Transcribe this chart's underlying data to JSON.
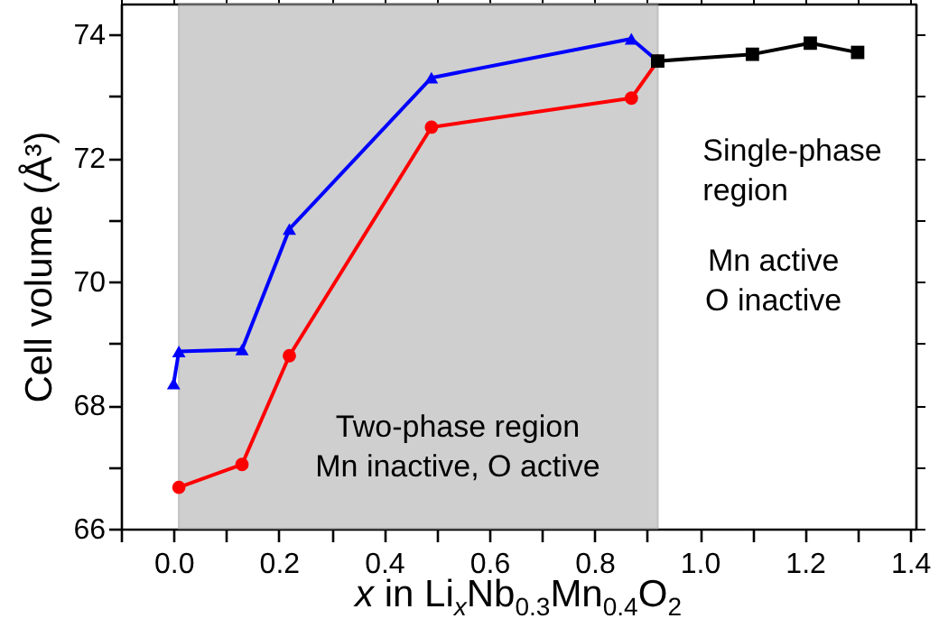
{
  "chart_data": {
    "type": "line",
    "xlabel": "x in Li$_{x}$Nb$_{0.3}$Mn$_{0.4}$O$_{2}$",
    "ylabel": "Cell volume (Å³)",
    "xlim": [
      -0.1,
      1.41
    ],
    "ylim": [
      66,
      74.5
    ],
    "xticks": [
      {
        "value": -0.1,
        "label": null
      },
      {
        "value": 0,
        "label": "0.0"
      },
      {
        "value": 0.1,
        "label": null
      },
      {
        "value": 0.2,
        "label": "0.2"
      },
      {
        "value": 0.3,
        "label": null
      },
      {
        "value": 0.4,
        "label": "0.4"
      },
      {
        "value": 0.5,
        "label": null
      },
      {
        "value": 0.6,
        "label": "0.6"
      },
      {
        "value": 0.7,
        "label": null
      },
      {
        "value": 0.8,
        "label": "0.8"
      },
      {
        "value": 0.9,
        "label": null
      },
      {
        "value": 1.0,
        "label": "1.0"
      },
      {
        "value": 1.1,
        "label": null
      },
      {
        "value": 1.2,
        "label": "1.2"
      },
      {
        "value": 1.3,
        "label": null
      },
      {
        "value": 1.4,
        "label": "1.4"
      }
    ],
    "yticks": [
      66,
      {
        "value": 67,
        "label": null
      },
      68,
      {
        "value": 69,
        "label": null
      },
      70,
      {
        "value": 71,
        "label": null
      },
      72,
      {
        "value": 73,
        "label": null
      },
      74
    ],
    "grid": false,
    "series": [
      {
        "color": "#0000ff",
        "marker": "triangle",
        "x": [
          0.0,
          0.01,
          0.13,
          0.22,
          0.49,
          0.87,
          0.92
        ],
        "values": [
          68.35,
          68.87,
          68.9,
          70.85,
          73.3,
          73.93,
          73.57
        ]
      },
      {
        "color": "#ff0000",
        "marker": "circle",
        "x": [
          0.01,
          0.13,
          0.22,
          0.49,
          0.87,
          0.92
        ],
        "values": [
          66.67,
          67.04,
          68.8,
          72.5,
          72.97,
          73.57
        ]
      },
      {
        "color": "#000000",
        "marker": "square",
        "x": [
          0.92,
          1.1,
          1.21,
          1.3
        ],
        "values": [
          73.57,
          73.68,
          73.86,
          73.71
        ]
      }
    ],
    "bands": [
      {
        "axis": "x",
        "from": 0.01,
        "to": 0.92,
        "color": "#b0b0b0"
      }
    ],
    "annotations": [
      "Two-phase region\nMn inactive, O active",
      "Single-phase\nregion",
      "Mn active\nO inactive"
    ]
  }
}
